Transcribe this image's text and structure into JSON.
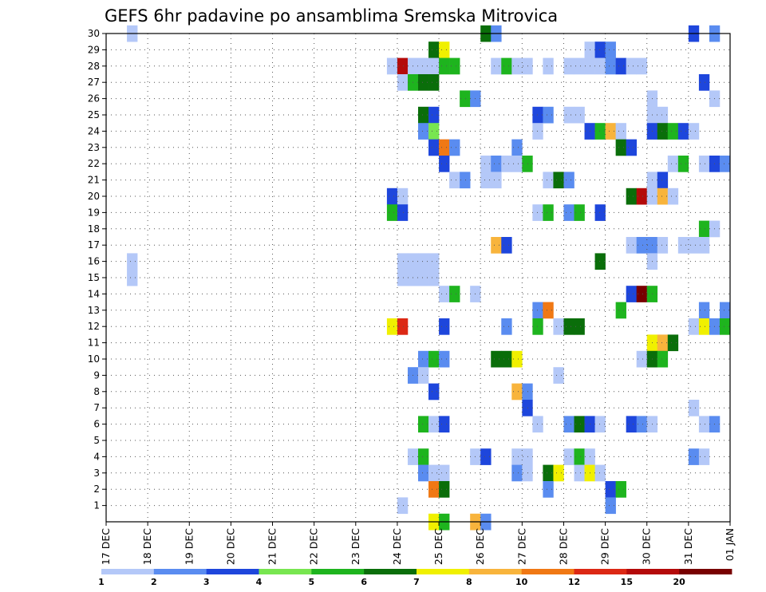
{
  "chart_data": {
    "type": "heatmap",
    "title": "GEFS 6hr padavine po ansamblima Sremska Mitrovica",
    "xlabel": "",
    "ylabel": "",
    "x_ticks": [
      "17 DEC",
      "18 DEC",
      "19 DEC",
      "20 DEC",
      "21 DEC",
      "22 DEC",
      "23 DEC",
      "24 DEC",
      "25 DEC",
      "26 DEC",
      "27 DEC",
      "28 DEC",
      "29 DEC",
      "30 DEC",
      "31 DEC",
      "01 JAN"
    ],
    "y_ticks": [
      1,
      2,
      3,
      4,
      5,
      6,
      7,
      8,
      9,
      10,
      11,
      12,
      13,
      14,
      15,
      16,
      17,
      18,
      19,
      20,
      21,
      22,
      23,
      24,
      25,
      26,
      27,
      28,
      29,
      30
    ],
    "ylim": [
      0,
      30
    ],
    "x_range_days": [
      0,
      15
    ],
    "grid": true,
    "legend": {
      "placement": "bottom",
      "labels": [
        "1",
        "2",
        "3",
        "4",
        "5",
        "6",
        "7",
        "8",
        "10",
        "12",
        "15",
        "20"
      ],
      "colors": [
        "#b4c8f8",
        "#5a8cf0",
        "#1e46dc",
        "#78e650",
        "#1eb41e",
        "#0a6e0a",
        "#f0f000",
        "#f8b43c",
        "#f07814",
        "#dc2814",
        "#b40a0a",
        "#780000"
      ]
    },
    "cell_width_days": 0.25,
    "cells": [
      [
        0.5,
        30,
        1
      ],
      [
        9.0,
        30,
        6
      ],
      [
        9.25,
        30,
        2
      ],
      [
        14.0,
        30,
        3
      ],
      [
        14.5,
        30,
        2
      ],
      [
        11.5,
        29,
        1
      ],
      [
        11.75,
        29,
        3
      ],
      [
        12.0,
        29,
        2
      ],
      [
        7.75,
        29,
        6
      ],
      [
        8.0,
        29,
        7
      ],
      [
        6.75,
        28,
        1
      ],
      [
        7.0,
        28,
        11
      ],
      [
        7.25,
        28,
        1
      ],
      [
        7.5,
        28,
        1
      ],
      [
        7.75,
        28,
        1
      ],
      [
        8.0,
        28,
        5
      ],
      [
        8.25,
        28,
        5
      ],
      [
        9.25,
        28,
        1
      ],
      [
        9.5,
        28,
        5
      ],
      [
        9.75,
        28,
        1
      ],
      [
        10.0,
        28,
        1
      ],
      [
        10.5,
        28,
        1
      ],
      [
        11.0,
        28,
        1
      ],
      [
        11.25,
        28,
        1
      ],
      [
        11.5,
        28,
        1
      ],
      [
        11.75,
        28,
        1
      ],
      [
        12.0,
        28,
        2
      ],
      [
        12.25,
        28,
        3
      ],
      [
        12.5,
        28,
        1
      ],
      [
        12.75,
        28,
        1
      ],
      [
        7.0,
        27,
        1
      ],
      [
        7.25,
        27,
        5
      ],
      [
        7.5,
        27,
        6
      ],
      [
        7.75,
        27,
        6
      ],
      [
        14.25,
        27,
        3
      ],
      [
        8.5,
        26,
        5
      ],
      [
        8.75,
        26,
        2
      ],
      [
        13.0,
        26,
        1
      ],
      [
        14.5,
        26,
        1
      ],
      [
        7.5,
        25,
        6
      ],
      [
        7.75,
        25,
        3
      ],
      [
        10.25,
        25,
        3
      ],
      [
        10.5,
        25,
        2
      ],
      [
        11.0,
        25,
        1
      ],
      [
        11.25,
        25,
        1
      ],
      [
        13.0,
        25,
        1
      ],
      [
        13.25,
        25,
        1
      ],
      [
        7.5,
        24,
        2
      ],
      [
        7.75,
        24,
        4
      ],
      [
        10.25,
        24,
        1
      ],
      [
        11.5,
        24,
        3
      ],
      [
        11.75,
        24,
        5
      ],
      [
        12.0,
        24,
        8
      ],
      [
        12.25,
        24,
        1
      ],
      [
        13.0,
        24,
        3
      ],
      [
        13.25,
        24,
        6
      ],
      [
        13.5,
        24,
        5
      ],
      [
        13.75,
        24,
        3
      ],
      [
        14.0,
        24,
        1
      ],
      [
        7.75,
        23,
        3
      ],
      [
        8.0,
        23,
        9
      ],
      [
        8.25,
        23,
        2
      ],
      [
        9.75,
        23,
        2
      ],
      [
        12.25,
        23,
        6
      ],
      [
        12.5,
        23,
        3
      ],
      [
        8.0,
        22,
        3
      ],
      [
        9.0,
        22,
        1
      ],
      [
        9.25,
        22,
        2
      ],
      [
        9.5,
        22,
        1
      ],
      [
        9.75,
        22,
        1
      ],
      [
        10.0,
        22,
        5
      ],
      [
        13.5,
        22,
        1
      ],
      [
        13.75,
        22,
        5
      ],
      [
        14.25,
        22,
        1
      ],
      [
        14.5,
        22,
        3
      ],
      [
        14.75,
        22,
        2
      ],
      [
        8.25,
        21,
        1
      ],
      [
        8.5,
        21,
        2
      ],
      [
        9.0,
        21,
        1
      ],
      [
        9.25,
        21,
        1
      ],
      [
        10.5,
        21,
        1
      ],
      [
        10.75,
        21,
        6
      ],
      [
        11.0,
        21,
        2
      ],
      [
        13.0,
        21,
        1
      ],
      [
        13.25,
        21,
        3
      ],
      [
        6.75,
        20,
        3
      ],
      [
        7.0,
        20,
        1
      ],
      [
        12.5,
        20,
        6
      ],
      [
        12.75,
        20,
        11
      ],
      [
        13.0,
        20,
        1
      ],
      [
        13.25,
        20,
        8
      ],
      [
        13.5,
        20,
        1
      ],
      [
        6.75,
        19,
        5
      ],
      [
        7.0,
        19,
        3
      ],
      [
        10.25,
        19,
        1
      ],
      [
        10.5,
        19,
        5
      ],
      [
        11.0,
        19,
        2
      ],
      [
        11.25,
        19,
        5
      ],
      [
        11.75,
        19,
        3
      ],
      [
        14.25,
        18,
        5
      ],
      [
        14.5,
        18,
        1
      ],
      [
        9.25,
        17,
        8
      ],
      [
        9.5,
        17,
        3
      ],
      [
        12.5,
        17,
        1
      ],
      [
        12.75,
        17,
        2
      ],
      [
        13.0,
        17,
        2
      ],
      [
        13.25,
        17,
        1
      ],
      [
        13.75,
        17,
        1
      ],
      [
        14.0,
        17,
        1
      ],
      [
        14.25,
        17,
        1
      ],
      [
        0.5,
        16,
        1
      ],
      [
        7.0,
        16,
        1
      ],
      [
        7.25,
        16,
        1
      ],
      [
        7.5,
        16,
        1
      ],
      [
        7.75,
        16,
        1
      ],
      [
        11.75,
        16,
        6
      ],
      [
        13.0,
        16,
        1
      ],
      [
        0.5,
        15,
        1
      ],
      [
        7.0,
        15,
        1
      ],
      [
        7.25,
        15,
        1
      ],
      [
        7.5,
        15,
        1
      ],
      [
        7.75,
        15,
        1
      ],
      [
        8.0,
        14,
        1
      ],
      [
        8.25,
        14,
        5
      ],
      [
        8.75,
        14,
        1
      ],
      [
        12.5,
        14,
        3
      ],
      [
        12.75,
        14,
        12
      ],
      [
        13.0,
        14,
        5
      ],
      [
        10.25,
        13,
        2
      ],
      [
        10.5,
        13,
        9
      ],
      [
        12.25,
        13,
        5
      ],
      [
        14.25,
        13,
        2
      ],
      [
        14.75,
        13,
        2
      ],
      [
        6.75,
        12,
        7
      ],
      [
        7.0,
        12,
        10
      ],
      [
        8.0,
        12,
        3
      ],
      [
        9.5,
        12,
        2
      ],
      [
        10.25,
        12,
        5
      ],
      [
        10.75,
        12,
        1
      ],
      [
        11.0,
        12,
        6
      ],
      [
        11.25,
        12,
        6
      ],
      [
        14.0,
        12,
        1
      ],
      [
        14.25,
        12,
        7
      ],
      [
        14.5,
        12,
        2
      ],
      [
        14.75,
        12,
        5
      ],
      [
        13.0,
        11,
        7
      ],
      [
        13.25,
        11,
        8
      ],
      [
        13.5,
        11,
        6
      ],
      [
        7.5,
        10,
        2
      ],
      [
        7.75,
        10,
        5
      ],
      [
        8.0,
        10,
        2
      ],
      [
        9.25,
        10,
        6
      ],
      [
        9.5,
        10,
        6
      ],
      [
        9.75,
        10,
        7
      ],
      [
        12.75,
        10,
        1
      ],
      [
        13.0,
        10,
        6
      ],
      [
        13.25,
        10,
        5
      ],
      [
        7.25,
        9,
        2
      ],
      [
        7.5,
        9,
        1
      ],
      [
        10.75,
        9,
        1
      ],
      [
        7.75,
        8,
        3
      ],
      [
        9.75,
        8,
        8
      ],
      [
        10.0,
        8,
        2
      ],
      [
        10.0,
        7,
        3
      ],
      [
        14.0,
        7,
        1
      ],
      [
        7.5,
        6,
        5
      ],
      [
        7.75,
        6,
        1
      ],
      [
        8.0,
        6,
        3
      ],
      [
        10.25,
        6,
        1
      ],
      [
        11.0,
        6,
        2
      ],
      [
        11.25,
        6,
        6
      ],
      [
        11.5,
        6,
        3
      ],
      [
        11.75,
        6,
        1
      ],
      [
        12.5,
        6,
        3
      ],
      [
        12.75,
        6,
        2
      ],
      [
        13.0,
        6,
        1
      ],
      [
        14.25,
        6,
        1
      ],
      [
        14.5,
        6,
        2
      ],
      [
        7.25,
        4,
        1
      ],
      [
        7.5,
        4,
        5
      ],
      [
        8.75,
        4,
        1
      ],
      [
        9.0,
        4,
        3
      ],
      [
        9.75,
        4,
        1
      ],
      [
        10.0,
        4,
        1
      ],
      [
        11.0,
        4,
        1
      ],
      [
        11.25,
        4,
        5
      ],
      [
        11.5,
        4,
        1
      ],
      [
        14.0,
        4,
        2
      ],
      [
        14.25,
        4,
        1
      ],
      [
        7.5,
        3,
        2
      ],
      [
        7.75,
        3,
        1
      ],
      [
        8.0,
        3,
        1
      ],
      [
        9.75,
        3,
        2
      ],
      [
        10.0,
        3,
        1
      ],
      [
        10.5,
        3,
        6
      ],
      [
        10.75,
        3,
        7
      ],
      [
        11.25,
        3,
        1
      ],
      [
        11.5,
        3,
        7
      ],
      [
        11.75,
        3,
        1
      ],
      [
        7.75,
        2,
        9
      ],
      [
        8.0,
        2,
        6
      ],
      [
        10.5,
        2,
        2
      ],
      [
        12.0,
        2,
        3
      ],
      [
        12.25,
        2,
        5
      ],
      [
        7.0,
        1,
        1
      ],
      [
        12.0,
        1,
        2
      ],
      [
        7.75,
        0,
        7
      ],
      [
        8.0,
        0,
        5
      ],
      [
        8.75,
        0,
        8
      ],
      [
        9.0,
        0,
        2
      ]
    ]
  }
}
